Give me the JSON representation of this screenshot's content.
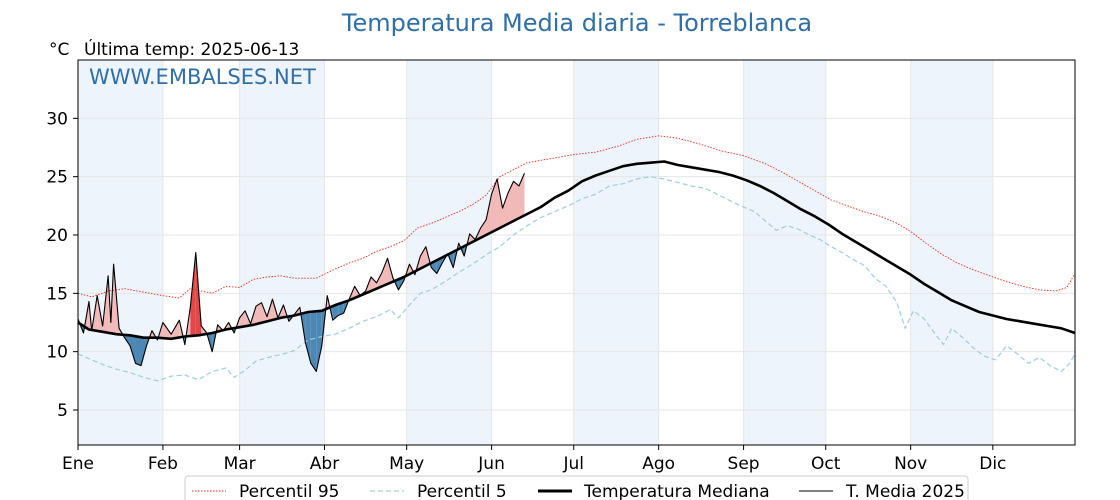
{
  "chart_data": {
    "type": "line",
    "title": "Temperatura Media diaria - Torreblanca",
    "unit_label": "°C",
    "last_temp_label": "Última temp: 2025-06-13",
    "watermark": "WWW.EMBALSES.NET",
    "xlabel": "",
    "ylabel": "",
    "ylim": [
      2,
      35
    ],
    "yticks": [
      5,
      10,
      15,
      20,
      25,
      30
    ],
    "xlim": [
      1,
      365
    ],
    "month_labels": [
      "Ene",
      "Feb",
      "Mar",
      "Abr",
      "May",
      "Jun",
      "Jul",
      "Ago",
      "Sep",
      "Oct",
      "Nov",
      "Dic"
    ],
    "month_start_days": [
      1,
      32,
      60,
      91,
      121,
      152,
      182,
      213,
      244,
      274,
      305,
      335
    ],
    "shaded_month_indices": [
      0,
      2,
      4,
      6,
      8,
      10
    ],
    "grid": true,
    "legend_position": "bottom",
    "colors": {
      "p95": "#e8271c",
      "p5": "#9ccde0",
      "median": "#000000",
      "current": "#000000",
      "above": "#f2b9b9",
      "above_strong": "#e34848",
      "below": "#4d87b3",
      "band": "#eef4fb",
      "grid": "#e6e6e6"
    },
    "series": [
      {
        "name": "Percentil 95",
        "style": "dotted-red",
        "points": [
          [
            1,
            15.0
          ],
          [
            6,
            14.7
          ],
          [
            12,
            15.2
          ],
          [
            18,
            15.4
          ],
          [
            25,
            15.1
          ],
          [
            32,
            14.8
          ],
          [
            38,
            14.6
          ],
          [
            42,
            15.4
          ],
          [
            50,
            15.0
          ],
          [
            55,
            15.6
          ],
          [
            60,
            15.5
          ],
          [
            65,
            16.2
          ],
          [
            70,
            16.4
          ],
          [
            75,
            16.5
          ],
          [
            80,
            16.3
          ],
          [
            88,
            16.3
          ],
          [
            95,
            17.1
          ],
          [
            100,
            17.6
          ],
          [
            105,
            18.0
          ],
          [
            110,
            18.6
          ],
          [
            115,
            19.0
          ],
          [
            120,
            19.5
          ],
          [
            125,
            20.6
          ],
          [
            130,
            21.0
          ],
          [
            135,
            21.5
          ],
          [
            140,
            22.0
          ],
          [
            145,
            22.6
          ],
          [
            150,
            23.4
          ],
          [
            155,
            25.0
          ],
          [
            160,
            25.6
          ],
          [
            165,
            26.2
          ],
          [
            170,
            26.4
          ],
          [
            175,
            26.6
          ],
          [
            182,
            26.9
          ],
          [
            190,
            27.1
          ],
          [
            198,
            27.6
          ],
          [
            205,
            28.2
          ],
          [
            213,
            28.5
          ],
          [
            220,
            28.3
          ],
          [
            228,
            27.8
          ],
          [
            236,
            27.2
          ],
          [
            244,
            26.8
          ],
          [
            252,
            26.1
          ],
          [
            258,
            25.4
          ],
          [
            264,
            24.6
          ],
          [
            270,
            23.8
          ],
          [
            276,
            23.0
          ],
          [
            282,
            22.5
          ],
          [
            288,
            22.0
          ],
          [
            294,
            21.6
          ],
          [
            300,
            21.0
          ],
          [
            305,
            20.3
          ],
          [
            310,
            19.4
          ],
          [
            316,
            18.4
          ],
          [
            322,
            17.6
          ],
          [
            328,
            17.0
          ],
          [
            335,
            16.4
          ],
          [
            340,
            16.0
          ],
          [
            346,
            15.6
          ],
          [
            352,
            15.3
          ],
          [
            358,
            15.2
          ],
          [
            362,
            15.5
          ],
          [
            365,
            16.7
          ]
        ]
      },
      {
        "name": "Percentil 5",
        "style": "dashed-lightblue",
        "points": [
          [
            1,
            9.8
          ],
          [
            5,
            9.4
          ],
          [
            10,
            8.9
          ],
          [
            15,
            8.5
          ],
          [
            20,
            8.2
          ],
          [
            25,
            7.8
          ],
          [
            30,
            7.5
          ],
          [
            35,
            7.9
          ],
          [
            40,
            8.0
          ],
          [
            45,
            7.6
          ],
          [
            50,
            8.3
          ],
          [
            55,
            8.6
          ],
          [
            58,
            7.8
          ],
          [
            62,
            8.4
          ],
          [
            66,
            9.2
          ],
          [
            72,
            9.6
          ],
          [
            76,
            9.8
          ],
          [
            80,
            10.1
          ],
          [
            85,
            11.0
          ],
          [
            90,
            11.3
          ],
          [
            95,
            11.5
          ],
          [
            100,
            12.0
          ],
          [
            105,
            12.6
          ],
          [
            110,
            13.0
          ],
          [
            115,
            13.6
          ],
          [
            118,
            12.9
          ],
          [
            122,
            14.0
          ],
          [
            126,
            15.0
          ],
          [
            130,
            15.3
          ],
          [
            135,
            16.0
          ],
          [
            140,
            16.8
          ],
          [
            145,
            17.5
          ],
          [
            150,
            18.3
          ],
          [
            155,
            19.0
          ],
          [
            160,
            20.0
          ],
          [
            165,
            20.8
          ],
          [
            170,
            21.5
          ],
          [
            175,
            22.0
          ],
          [
            180,
            22.5
          ],
          [
            185,
            23.1
          ],
          [
            190,
            23.5
          ],
          [
            195,
            24.2
          ],
          [
            200,
            24.4
          ],
          [
            205,
            24.8
          ],
          [
            210,
            25.0
          ],
          [
            215,
            24.8
          ],
          [
            220,
            24.5
          ],
          [
            225,
            24.2
          ],
          [
            230,
            24.0
          ],
          [
            236,
            23.3
          ],
          [
            242,
            22.6
          ],
          [
            248,
            22.0
          ],
          [
            252,
            21.2
          ],
          [
            256,
            20.4
          ],
          [
            260,
            20.8
          ],
          [
            264,
            20.5
          ],
          [
            268,
            20.0
          ],
          [
            272,
            19.6
          ],
          [
            276,
            19.0
          ],
          [
            280,
            18.5
          ],
          [
            284,
            17.9
          ],
          [
            288,
            17.4
          ],
          [
            292,
            16.3
          ],
          [
            296,
            15.6
          ],
          [
            300,
            14.2
          ],
          [
            303,
            12.0
          ],
          [
            306,
            13.5
          ],
          [
            310,
            12.8
          ],
          [
            314,
            11.5
          ],
          [
            317,
            10.6
          ],
          [
            320,
            12.0
          ],
          [
            324,
            11.2
          ],
          [
            328,
            10.3
          ],
          [
            332,
            9.6
          ],
          [
            336,
            9.3
          ],
          [
            340,
            10.5
          ],
          [
            344,
            9.8
          ],
          [
            348,
            9.0
          ],
          [
            352,
            9.5
          ],
          [
            356,
            8.8
          ],
          [
            360,
            8.3
          ],
          [
            363,
            9.0
          ],
          [
            365,
            9.8
          ]
        ]
      },
      {
        "name": "Temperatura Mediana",
        "style": "thick-black",
        "points": [
          [
            1,
            12.5
          ],
          [
            5,
            11.9
          ],
          [
            10,
            11.7
          ],
          [
            15,
            11.5
          ],
          [
            20,
            11.4
          ],
          [
            25,
            11.2
          ],
          [
            30,
            11.2
          ],
          [
            35,
            11.1
          ],
          [
            40,
            11.3
          ],
          [
            45,
            11.4
          ],
          [
            50,
            11.6
          ],
          [
            55,
            11.9
          ],
          [
            60,
            12.1
          ],
          [
            65,
            12.3
          ],
          [
            70,
            12.6
          ],
          [
            75,
            12.9
          ],
          [
            80,
            13.1
          ],
          [
            85,
            13.4
          ],
          [
            90,
            13.5
          ],
          [
            95,
            14.0
          ],
          [
            100,
            14.4
          ],
          [
            105,
            14.9
          ],
          [
            110,
            15.4
          ],
          [
            115,
            15.9
          ],
          [
            120,
            16.4
          ],
          [
            125,
            17.0
          ],
          [
            130,
            17.6
          ],
          [
            135,
            18.2
          ],
          [
            140,
            18.8
          ],
          [
            145,
            19.4
          ],
          [
            150,
            20.0
          ],
          [
            155,
            20.6
          ],
          [
            160,
            21.2
          ],
          [
            165,
            21.8
          ],
          [
            170,
            22.4
          ],
          [
            175,
            23.2
          ],
          [
            180,
            23.8
          ],
          [
            185,
            24.6
          ],
          [
            190,
            25.1
          ],
          [
            195,
            25.5
          ],
          [
            200,
            25.9
          ],
          [
            205,
            26.1
          ],
          [
            210,
            26.2
          ],
          [
            215,
            26.3
          ],
          [
            220,
            26.0
          ],
          [
            225,
            25.8
          ],
          [
            230,
            25.6
          ],
          [
            235,
            25.4
          ],
          [
            240,
            25.1
          ],
          [
            245,
            24.7
          ],
          [
            250,
            24.2
          ],
          [
            255,
            23.6
          ],
          [
            260,
            22.9
          ],
          [
            265,
            22.2
          ],
          [
            270,
            21.6
          ],
          [
            275,
            20.9
          ],
          [
            280,
            20.1
          ],
          [
            285,
            19.4
          ],
          [
            290,
            18.7
          ],
          [
            295,
            18.0
          ],
          [
            300,
            17.3
          ],
          [
            305,
            16.6
          ],
          [
            310,
            15.8
          ],
          [
            315,
            15.1
          ],
          [
            320,
            14.4
          ],
          [
            325,
            13.9
          ],
          [
            330,
            13.4
          ],
          [
            335,
            13.1
          ],
          [
            340,
            12.8
          ],
          [
            345,
            12.6
          ],
          [
            350,
            12.4
          ],
          [
            355,
            12.2
          ],
          [
            360,
            12.0
          ],
          [
            365,
            11.6
          ]
        ]
      },
      {
        "name": "T. Media 2025",
        "style": "thin-black",
        "points": [
          [
            1,
            12.8
          ],
          [
            3,
            11.6
          ],
          [
            5,
            14.3
          ],
          [
            6,
            11.8
          ],
          [
            8,
            14.8
          ],
          [
            10,
            12.2
          ],
          [
            12,
            16.5
          ],
          [
            13,
            12.5
          ],
          [
            14,
            17.5
          ],
          [
            16,
            12.0
          ],
          [
            18,
            11.2
          ],
          [
            20,
            10.5
          ],
          [
            22,
            9.0
          ],
          [
            24,
            8.8
          ],
          [
            26,
            10.5
          ],
          [
            28,
            11.8
          ],
          [
            30,
            11.0
          ],
          [
            32,
            12.5
          ],
          [
            35,
            11.5
          ],
          [
            38,
            12.7
          ],
          [
            40,
            10.6
          ],
          [
            42,
            13.8
          ],
          [
            44,
            18.5
          ],
          [
            46,
            12.2
          ],
          [
            48,
            11.6
          ],
          [
            50,
            10.0
          ],
          [
            52,
            12.3
          ],
          [
            54,
            11.8
          ],
          [
            56,
            12.5
          ],
          [
            58,
            11.6
          ],
          [
            60,
            12.9
          ],
          [
            62,
            13.5
          ],
          [
            64,
            12.4
          ],
          [
            66,
            13.9
          ],
          [
            68,
            14.2
          ],
          [
            70,
            13.0
          ],
          [
            72,
            14.5
          ],
          [
            74,
            12.9
          ],
          [
            76,
            14.0
          ],
          [
            78,
            12.6
          ],
          [
            80,
            13.2
          ],
          [
            82,
            13.8
          ],
          [
            84,
            10.8
          ],
          [
            86,
            9.0
          ],
          [
            88,
            8.3
          ],
          [
            90,
            10.5
          ],
          [
            92,
            14.8
          ],
          [
            94,
            12.7
          ],
          [
            96,
            13.1
          ],
          [
            98,
            13.3
          ],
          [
            100,
            14.5
          ],
          [
            102,
            15.6
          ],
          [
            104,
            14.8
          ],
          [
            106,
            15.2
          ],
          [
            108,
            16.4
          ],
          [
            110,
            15.9
          ],
          [
            112,
            16.8
          ],
          [
            114,
            18.0
          ],
          [
            116,
            16.3
          ],
          [
            118,
            15.3
          ],
          [
            120,
            16.1
          ],
          [
            122,
            17.5
          ],
          [
            124,
            16.6
          ],
          [
            126,
            18.2
          ],
          [
            128,
            19.0
          ],
          [
            130,
            17.2
          ],
          [
            132,
            16.7
          ],
          [
            134,
            17.6
          ],
          [
            136,
            18.4
          ],
          [
            138,
            17.2
          ],
          [
            140,
            19.3
          ],
          [
            142,
            18.2
          ],
          [
            144,
            20.1
          ],
          [
            146,
            19.6
          ],
          [
            148,
            20.6
          ],
          [
            150,
            21.3
          ],
          [
            152,
            23.5
          ],
          [
            154,
            24.8
          ],
          [
            156,
            22.3
          ],
          [
            158,
            23.6
          ],
          [
            160,
            24.6
          ],
          [
            162,
            24.2
          ],
          [
            164,
            25.3
          ]
        ]
      }
    ],
    "legend": [
      "Percentil 95",
      "Percentil 5",
      "Temperatura Mediana",
      "T. Media 2025"
    ]
  }
}
